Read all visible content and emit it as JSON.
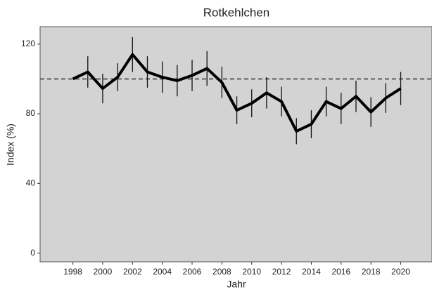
{
  "chart_data": {
    "type": "line",
    "title": "Rotkehlchen",
    "x_label": "Jahr",
    "y_label": "Index (%)",
    "x": [
      1998,
      1999,
      2000,
      2001,
      2002,
      2003,
      2004,
      2005,
      2006,
      2007,
      2008,
      2009,
      2010,
      2011,
      2012,
      2013,
      2014,
      2015,
      2016,
      2017,
      2018,
      2019,
      2020
    ],
    "values": [
      100,
      104,
      94.5,
      101,
      114,
      104,
      101,
      99,
      102,
      106,
      98,
      82,
      86,
      92,
      87,
      70,
      74,
      87,
      83,
      90,
      81,
      89,
      94.5
    ],
    "errors": [
      null,
      9,
      8.5,
      8,
      10,
      9,
      9,
      9,
      9,
      10,
      9,
      8,
      8,
      9,
      8.5,
      7.5,
      8,
      8.5,
      9,
      9,
      8.5,
      8.5,
      9.5
    ],
    "color": "#000000",
    "reference_line": 100,
    "xlim": [
      1995.8,
      2022.1
    ],
    "ylim": [
      -5,
      130
    ],
    "xticks": [
      1998,
      2000,
      2002,
      2004,
      2006,
      2008,
      2010,
      2012,
      2014,
      2016,
      2018,
      2020
    ],
    "yticks": [
      0,
      40,
      80,
      120
    ],
    "background": "#d3d3d3"
  }
}
